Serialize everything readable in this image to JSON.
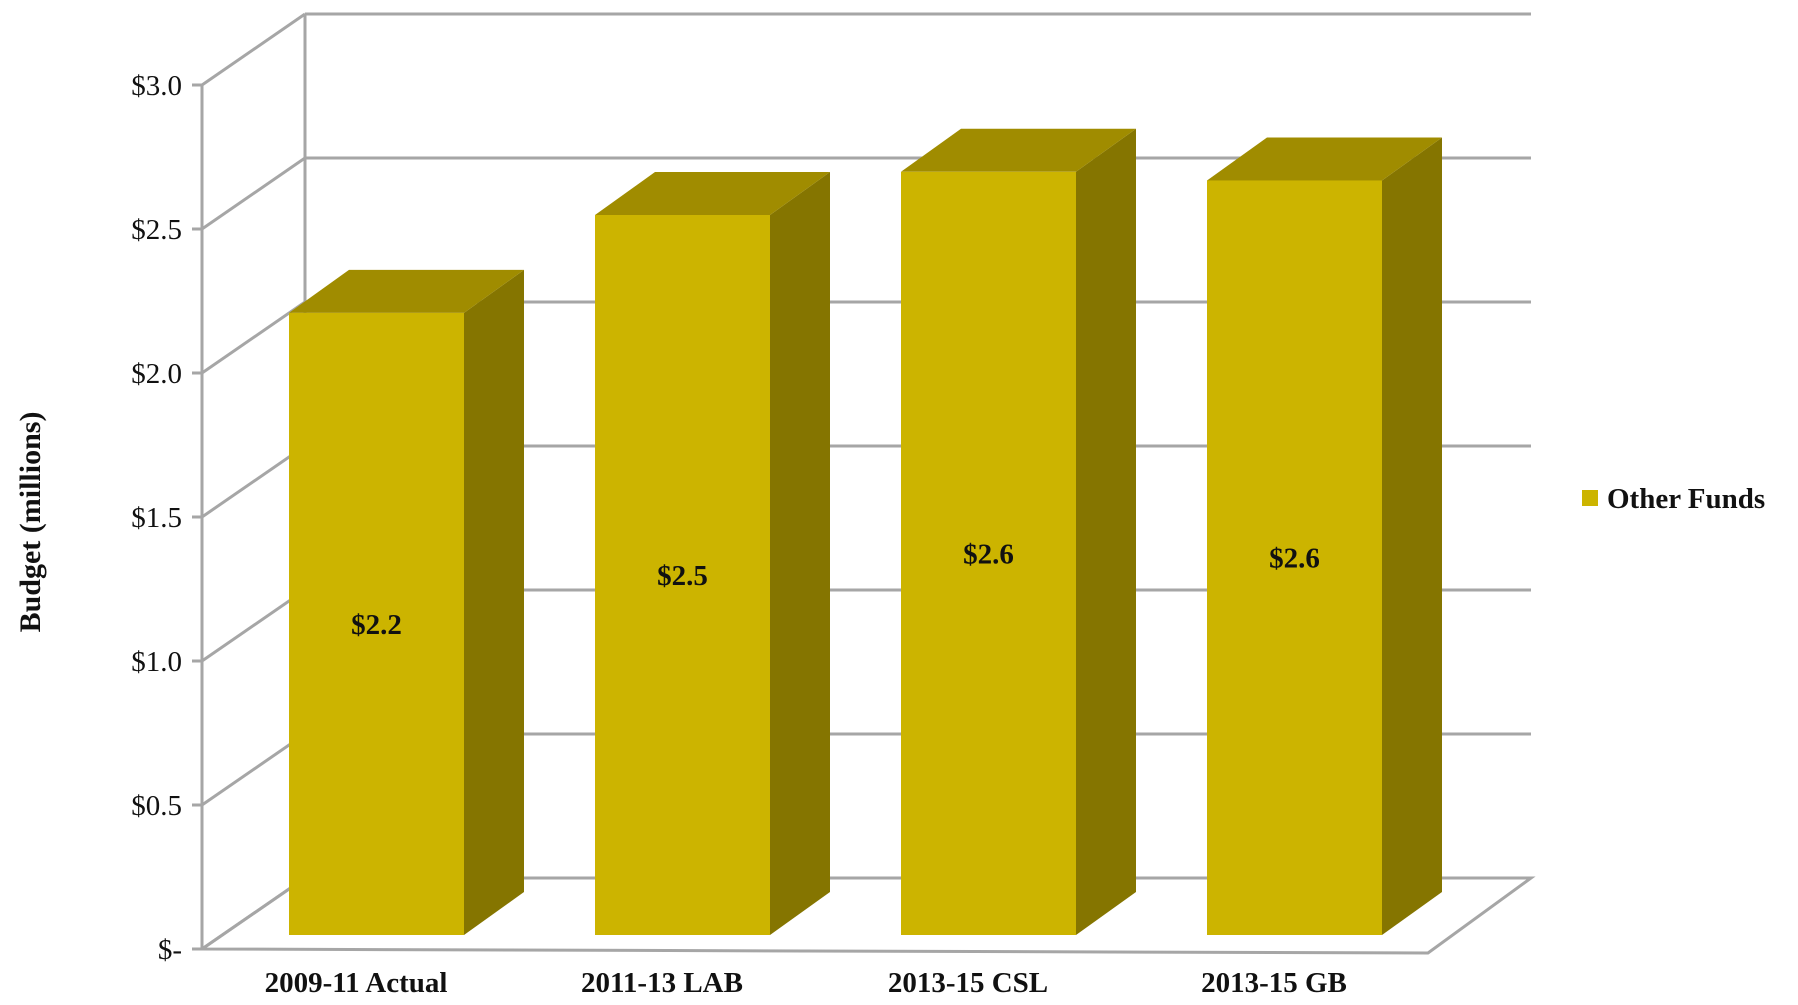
{
  "chart_data": {
    "type": "bar",
    "view": "3d",
    "categories": [
      "2009-11 Actual",
      "2011-13 LAB",
      "2013-15 CSL",
      "2013-15 GB"
    ],
    "series": [
      {
        "name": "Other Funds",
        "values": [
          2.16,
          2.5,
          2.65,
          2.62
        ],
        "data_labels": [
          "$2.2",
          "$2.5",
          "$2.6",
          "$2.6"
        ]
      }
    ],
    "ylabel": "Budget (millions)",
    "xlabel": "",
    "ylim": [
      0,
      3.0
    ],
    "yticks": [
      0,
      0.5,
      1.0,
      1.5,
      2.0,
      2.5,
      3.0
    ],
    "ytick_labels": [
      "$-",
      "$0.5",
      "$1.0",
      "$1.5",
      "$2.0",
      "$2.5",
      "$3.0"
    ],
    "grid": true,
    "legend_position": "right",
    "colors": {
      "bar_front": "#CCB400",
      "bar_top": "#A08C00",
      "bar_side": "#857500",
      "grid": "#A6A6A6",
      "axis": "#A6A6A6"
    }
  }
}
